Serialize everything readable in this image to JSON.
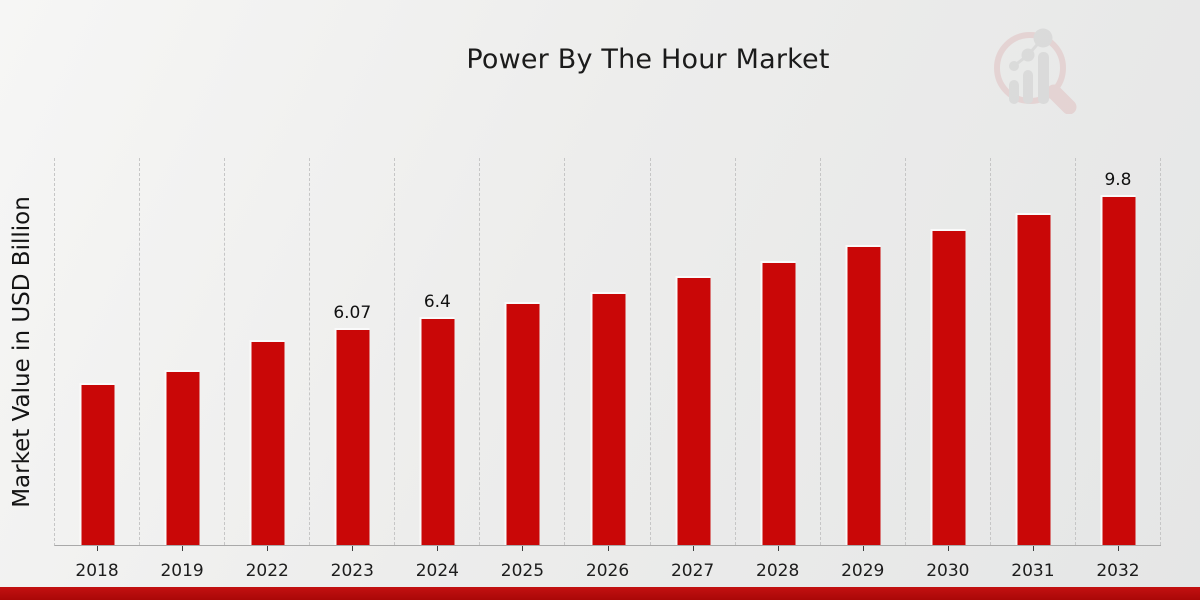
{
  "title": "Power By The Hour Market",
  "colors": {
    "bar": "#c90707",
    "bar_edge_highlight": "#fafafa",
    "footer_strip": "#b20b0b",
    "background": "#ebecec",
    "grid_line": "#c6c6c6",
    "axis_line": "#a9a9a9",
    "text": "#1b1b1b"
  },
  "logo": {
    "name": "magnifier-bar-chart-watermark",
    "glass_color": "#dfb9b9",
    "bars_color": "#c9c9c9"
  },
  "chart_data": {
    "type": "bar",
    "title": "Power By The Hour Market",
    "xlabel": "",
    "ylabel": "Market Value in USD Billion",
    "categories": [
      "2018",
      "2019",
      "2022",
      "2023",
      "2024",
      "2025",
      "2026",
      "2027",
      "2028",
      "2029",
      "2030",
      "2031",
      "2032"
    ],
    "values": [
      4.55,
      4.9,
      5.75,
      6.07,
      6.4,
      6.8,
      7.1,
      7.55,
      7.95,
      8.4,
      8.85,
      9.3,
      9.8
    ],
    "data_labels": {
      "2023": "6.07",
      "2024": "6.4",
      "2032": "9.8"
    },
    "ylim": [
      0,
      10.85
    ],
    "y_axis_ticks_visible": false,
    "grid": "vertical-dashed",
    "legend": "none",
    "bar_color": "#c90707"
  }
}
